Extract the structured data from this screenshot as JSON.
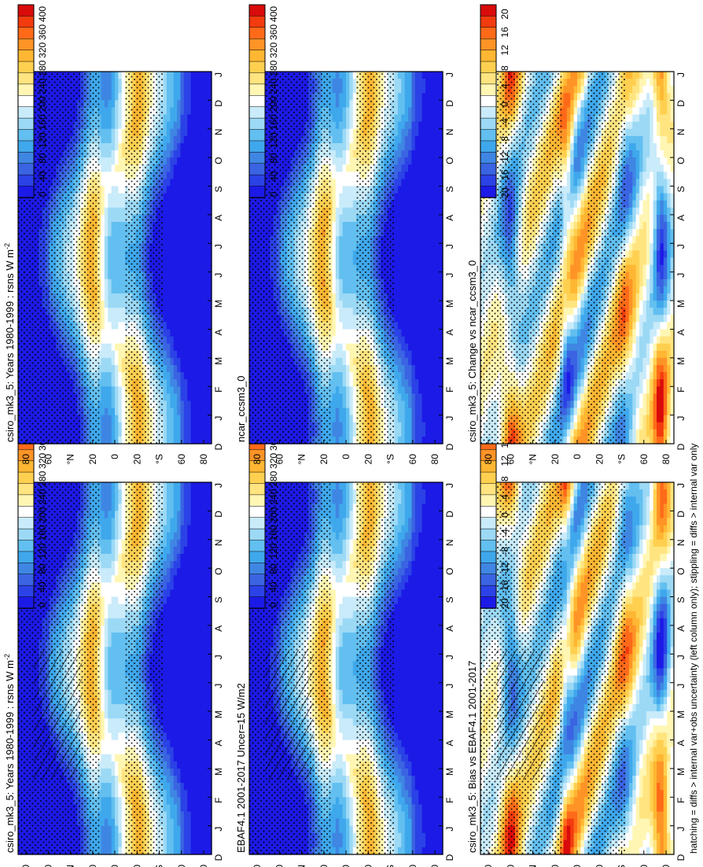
{
  "figure": {
    "caption": "hatching = diffs > internal var+obs uncertainty (left column only); stippling = diffs > internal var only"
  },
  "chart_data": [
    {
      "id": "p1",
      "type": "heatmap",
      "title": "csiro_mk3_5: Years 1980-1999 : rsns W m",
      "title_sup": "-2",
      "months": [
        "D",
        "J",
        "F",
        "M",
        "A",
        "M",
        "J",
        "J",
        "A",
        "S",
        "O",
        "N",
        "D",
        "J"
      ],
      "lat_labels": [
        "80",
        "60",
        "°N",
        "20",
        "0",
        "20",
        "°S",
        "60",
        "80"
      ],
      "lat_range": [
        -90,
        90
      ],
      "field": "rsns_climatology",
      "colorbar": {
        "labels": [
          "400",
          "360",
          "320",
          "280",
          "240",
          "200",
          "160",
          "120",
          "80",
          "40",
          "0"
        ],
        "range": [
          0,
          420
        ],
        "palette": "abs"
      },
      "stipple": true,
      "hatch": true
    },
    {
      "id": "p2",
      "type": "heatmap",
      "title": "csiro_mk3_5: Years 1980-1999 : rsns W m",
      "title_sup": "-2",
      "months": [
        "D",
        "J",
        "F",
        "M",
        "A",
        "M",
        "J",
        "J",
        "A",
        "S",
        "O",
        "N",
        "D",
        "J"
      ],
      "lat_labels": [
        "80",
        "60",
        "°N",
        "20",
        "0",
        "20",
        "°S",
        "60",
        "80"
      ],
      "lat_range": [
        -90,
        90
      ],
      "field": "rsns_climatology",
      "colorbar": {
        "labels": [
          "400",
          "360",
          "320",
          "280",
          "240",
          "200",
          "160",
          "120",
          "80",
          "40",
          "0"
        ],
        "range": [
          0,
          420
        ],
        "palette": "abs"
      },
      "stipple": true,
      "hatch": false
    },
    {
      "id": "p3",
      "type": "heatmap",
      "title": "EBAF4.1 2001-2017 Uncer=15 W/m2",
      "title_sup": "",
      "months": [
        "D",
        "J",
        "F",
        "M",
        "A",
        "M",
        "J",
        "J",
        "A",
        "S",
        "O",
        "N",
        "D",
        "J"
      ],
      "lat_labels": [
        "80",
        "60",
        "°N",
        "20",
        "0",
        "20",
        "°S",
        "60",
        "80"
      ],
      "lat_range": [
        -90,
        90
      ],
      "field": "rsns_climatology",
      "colorbar": {
        "labels": [
          "400",
          "360",
          "320",
          "280",
          "240",
          "200",
          "160",
          "120",
          "80",
          "40",
          "0"
        ],
        "range": [
          0,
          420
        ],
        "palette": "abs"
      },
      "stipple": true,
      "hatch": true
    },
    {
      "id": "p4",
      "type": "heatmap",
      "title": "ncar_ccsm3_0",
      "title_sup": "",
      "months": [
        "D",
        "J",
        "F",
        "M",
        "A",
        "M",
        "J",
        "J",
        "A",
        "S",
        "O",
        "N",
        "D",
        "J"
      ],
      "lat_labels": [
        "80",
        "60",
        "°N",
        "20",
        "0",
        "20",
        "°S",
        "60",
        "80"
      ],
      "lat_range": [
        -90,
        90
      ],
      "field": "rsns_climatology",
      "colorbar": {
        "labels": [
          "400",
          "360",
          "320",
          "280",
          "240",
          "200",
          "160",
          "120",
          "80",
          "40",
          "0"
        ],
        "range": [
          0,
          420
        ],
        "palette": "abs"
      },
      "stipple": true,
      "hatch": false
    },
    {
      "id": "p5",
      "type": "heatmap",
      "title": "csiro_mk3_5: Bias vs EBAF4.1 2001-2017",
      "title_sup": "",
      "months": [
        "D",
        "J",
        "F",
        "M",
        "A",
        "M",
        "J",
        "J",
        "A",
        "S",
        "O",
        "N",
        "D",
        "J"
      ],
      "lat_labels": [
        "80",
        "60",
        "°N",
        "20",
        "0",
        "20",
        "°S",
        "60",
        "80"
      ],
      "lat_range": [
        -90,
        90
      ],
      "field": "rsns_bias",
      "colorbar": {
        "labels": [
          "20",
          "16",
          "12",
          "8",
          "4",
          "0",
          "-4",
          "-8",
          "-12",
          "-16",
          "-20"
        ],
        "range": [
          -22,
          22
        ],
        "palette": "diff"
      },
      "stipple": true,
      "hatch": true
    },
    {
      "id": "p6",
      "type": "heatmap",
      "title": "csiro_mk3_5: Change vs ncar_ccsm3_0",
      "title_sup": "",
      "months": [
        "D",
        "J",
        "F",
        "M",
        "A",
        "M",
        "J",
        "J",
        "A",
        "S",
        "O",
        "N",
        "D",
        "J"
      ],
      "lat_labels": [
        "80",
        "60",
        "°N",
        "20",
        "0",
        "20",
        "°S",
        "60",
        "80"
      ],
      "lat_range": [
        -90,
        90
      ],
      "field": "rsns_change",
      "colorbar": {
        "labels": [
          "20",
          "16",
          "12",
          "8",
          "4",
          "0",
          "-4",
          "-8",
          "-12",
          "-16",
          "-20"
        ],
        "range": [
          -22,
          22
        ],
        "palette": "diff"
      },
      "stipple": true,
      "hatch": false
    }
  ]
}
